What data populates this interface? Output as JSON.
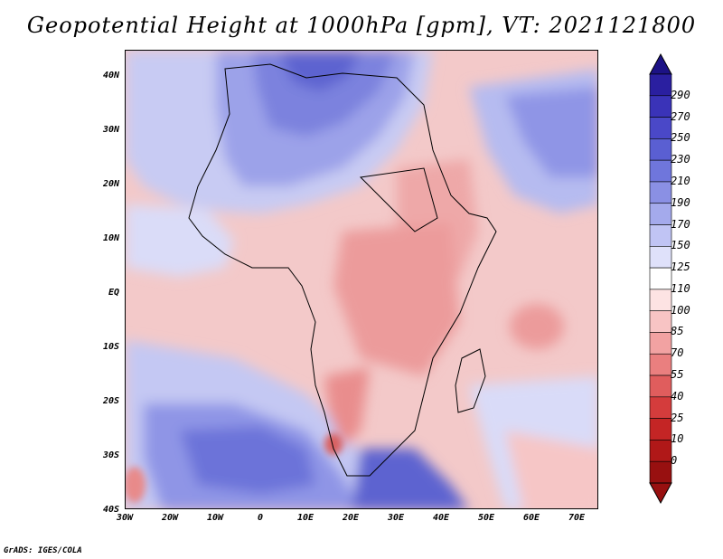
{
  "title": "Geopotential Height at 1000hPa [gpm], VT: 2021121800",
  "credit": "GrADS: IGES/COLA",
  "map": {
    "lon_ticks": [
      "30W",
      "20W",
      "10W",
      "0",
      "10E",
      "20E",
      "30E",
      "40E",
      "50E",
      "60E",
      "70E"
    ],
    "lat_ticks": [
      "40N",
      "30N",
      "20N",
      "10N",
      "EQ",
      "10S",
      "20S",
      "30S",
      "40S"
    ]
  },
  "colorbar": {
    "labels": [
      "290",
      "270",
      "250",
      "230",
      "210",
      "190",
      "170",
      "150",
      "125",
      "110",
      "100",
      "85",
      "70",
      "55",
      "40",
      "25",
      "10",
      "0"
    ],
    "colors": [
      "#2a1fa0",
      "#3a33b8",
      "#4a48c8",
      "#5a5fd2",
      "#6f76dc",
      "#8a90e4",
      "#a4aaec",
      "#c0c4f4",
      "#dfe1fa",
      "#ffffff",
      "#fde3e3",
      "#f8c4c4",
      "#f2a2a2",
      "#ea7f7f",
      "#e05d5d",
      "#d43c3c",
      "#c42525",
      "#b01818",
      "#981010"
    ],
    "top_arrow_color": "#1c1285",
    "bottom_arrow_color": "#981010"
  }
}
